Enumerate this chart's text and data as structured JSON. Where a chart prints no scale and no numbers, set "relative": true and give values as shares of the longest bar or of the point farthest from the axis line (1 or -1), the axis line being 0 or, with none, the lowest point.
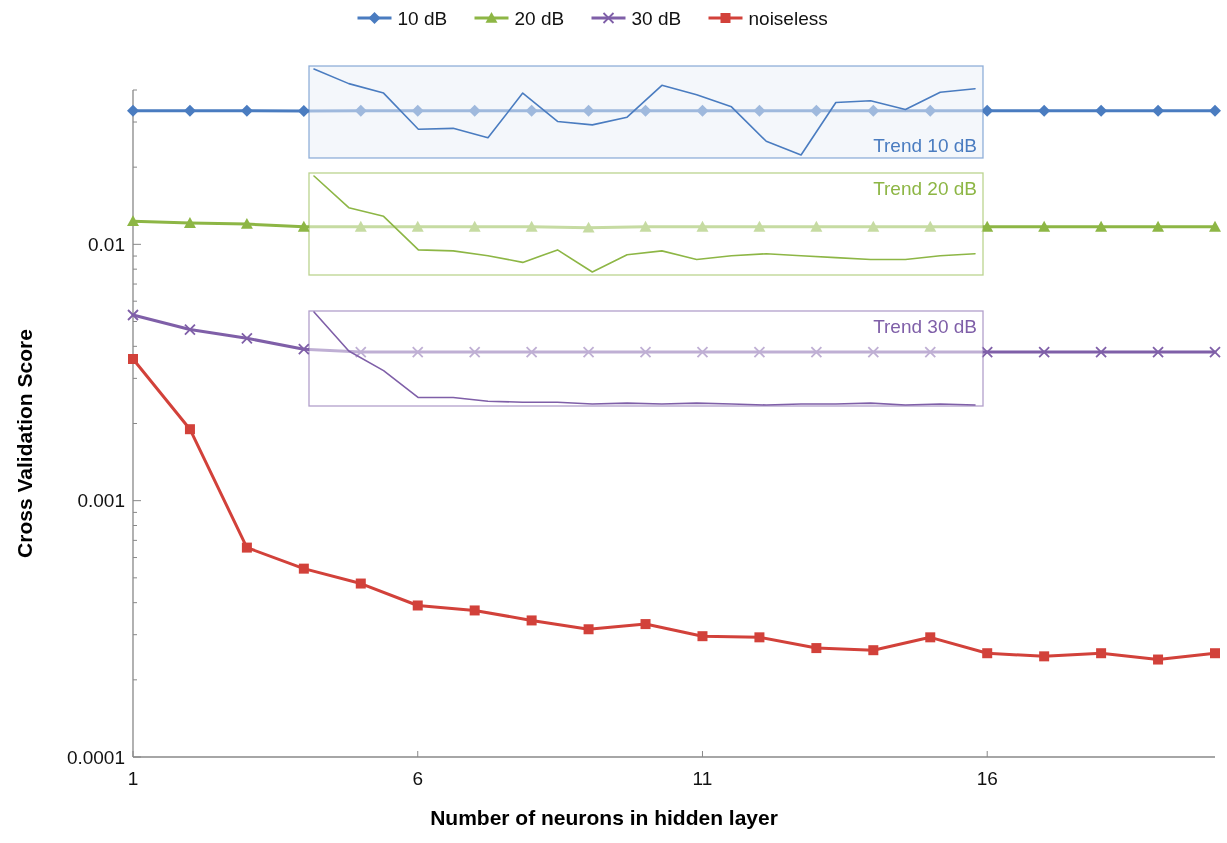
{
  "chart_data": [
    {
      "type": "line",
      "xlabel": "Number of neurons in hidden layer",
      "ylabel": "Cross Validation Score",
      "log": "y",
      "xlim": [
        1,
        20
      ],
      "xticks": [
        1,
        6,
        11,
        16
      ],
      "ylim": [
        0.0001,
        0.04
      ],
      "yticks": [
        0.0001,
        {
          "value": 0.0002,
          "label": null
        },
        {
          "value": 0.0003,
          "label": null
        },
        {
          "value": 0.0004,
          "label": null
        },
        {
          "value": 0.0005,
          "label": null
        },
        {
          "value": 0.0006,
          "label": null
        },
        {
          "value": 0.0007,
          "label": null
        },
        {
          "value": 0.0008,
          "label": null
        },
        {
          "value": 0.0009,
          "label": null
        },
        0.001,
        {
          "value": 0.002,
          "label": null
        },
        {
          "value": 0.003,
          "label": null
        },
        {
          "value": 0.004,
          "label": null
        },
        {
          "value": 0.005,
          "label": null
        },
        {
          "value": 0.006,
          "label": null
        },
        {
          "value": 0.007,
          "label": null
        },
        {
          "value": 0.008,
          "label": null
        },
        {
          "value": 0.009,
          "label": null
        },
        0.01,
        {
          "value": 0.02,
          "label": null
        },
        {
          "value": 0.03,
          "label": null
        },
        {
          "value": 0.04,
          "label": null
        }
      ],
      "grid": false,
      "legend": "top",
      "x": [
        1,
        2,
        3,
        4,
        5,
        6,
        7,
        8,
        9,
        10,
        11,
        12,
        13,
        14,
        15,
        16,
        17,
        18,
        19,
        20
      ],
      "series": [
        {
          "name": "10 dB",
          "color": "#4a7cc0",
          "marker": "diamond",
          "values": [
            0.0332,
            0.0332,
            0.0332,
            0.0331,
            0.0332,
            0.0332,
            0.0332,
            0.0332,
            0.0332,
            0.0332,
            0.0332,
            0.0332,
            0.0332,
            0.0332,
            0.0332,
            0.0332,
            0.0332,
            0.0332,
            0.0332,
            0.0332
          ]
        },
        {
          "name": "20 dB",
          "color": "#8db645",
          "marker": "triangle",
          "values": [
            0.0123,
            0.0121,
            0.012,
            0.0117,
            0.0117,
            0.0117,
            0.0117,
            0.0117,
            0.0116,
            0.0117,
            0.0117,
            0.0117,
            0.0117,
            0.0117,
            0.0117,
            0.0117,
            0.0117,
            0.0117,
            0.0117,
            0.0117
          ]
        },
        {
          "name": "30 dB",
          "color": "#7f5fa8",
          "marker": "cross",
          "values": [
            0.0053,
            0.00465,
            0.0043,
            0.0039,
            0.0038,
            0.0038,
            0.0038,
            0.0038,
            0.0038,
            0.0038,
            0.0038,
            0.0038,
            0.0038,
            0.0038,
            0.0038,
            0.0038,
            0.0038,
            0.0038,
            0.0038,
            0.0038
          ]
        },
        {
          "name": "noiseless",
          "color": "#d2413a",
          "marker": "square",
          "values": [
            0.00357,
            0.0019,
            0.000656,
            0.000543,
            0.000475,
            0.00039,
            0.000373,
            0.000341,
            0.000315,
            0.00033,
            0.000296,
            0.000293,
            0.000266,
            0.000261,
            0.000293,
            0.000254,
            0.000247,
            0.000254,
            0.00024,
            0.000254
          ]
        }
      ]
    },
    {
      "type": "line",
      "title": "Trend 10 dB",
      "relative": true,
      "categories": [
        null,
        null,
        null,
        null,
        null,
        null,
        null,
        null,
        null,
        null,
        null,
        null,
        null,
        null,
        null,
        null,
        null,
        null,
        null,
        null
      ],
      "series": [
        {
          "color": "#4a7cc0",
          "values": [
            1,
            0.83,
            0.72,
            0.3,
            0.31,
            0.2,
            0.72,
            0.39,
            0.35,
            0.44,
            0.81,
            0.7,
            0.56,
            0.16,
            0,
            0.61,
            0.63,
            0.53,
            0.73,
            0.77
          ]
        }
      ]
    },
    {
      "type": "line",
      "title": "Trend 20 dB",
      "relative": true,
      "categories": [
        null,
        null,
        null,
        null,
        null,
        null,
        null,
        null,
        null,
        null,
        null,
        null,
        null,
        null,
        null,
        null,
        null,
        null,
        null,
        null
      ],
      "series": [
        {
          "color": "#8db645",
          "values": [
            1,
            0.67,
            0.58,
            0.23,
            0.22,
            0.17,
            0.1,
            0.23,
            0,
            0.18,
            0.22,
            0.13,
            0.17,
            0.19,
            0.17,
            0.15,
            0.13,
            0.13,
            0.17,
            0.19
          ]
        }
      ]
    },
    {
      "type": "line",
      "title": "Trend 30 dB",
      "relative": true,
      "categories": [
        null,
        null,
        null,
        null,
        null,
        null,
        null,
        null,
        null,
        null,
        null,
        null,
        null,
        null,
        null,
        null,
        null,
        null,
        null,
        null
      ],
      "series": [
        {
          "color": "#7f5fa8",
          "values": [
            1,
            0.58,
            0.37,
            0.08,
            0.08,
            0.04,
            0.03,
            0.03,
            0.01,
            0.02,
            0.01,
            0.02,
            0.01,
            0,
            0.01,
            0.01,
            0.02,
            0,
            0.01,
            0
          ]
        }
      ]
    }
  ]
}
